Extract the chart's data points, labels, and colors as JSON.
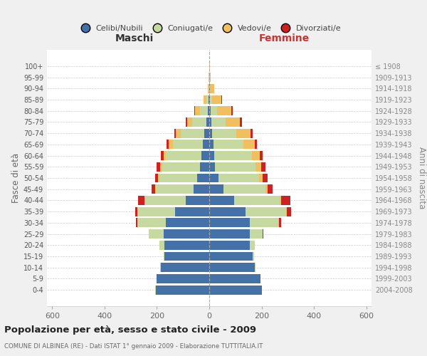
{
  "age_groups": [
    "0-4",
    "5-9",
    "10-14",
    "15-19",
    "20-24",
    "25-29",
    "30-34",
    "35-39",
    "40-44",
    "45-49",
    "50-54",
    "55-59",
    "60-64",
    "65-69",
    "70-74",
    "75-79",
    "80-84",
    "85-89",
    "90-94",
    "95-99",
    "100+"
  ],
  "birth_years": [
    "2004-2008",
    "1999-2003",
    "1994-1998",
    "1989-1993",
    "1984-1988",
    "1979-1983",
    "1974-1978",
    "1969-1973",
    "1964-1968",
    "1959-1963",
    "1954-1958",
    "1949-1953",
    "1944-1948",
    "1939-1943",
    "1934-1938",
    "1929-1933",
    "1924-1928",
    "1919-1923",
    "1914-1918",
    "1909-1913",
    "≤ 1908"
  ],
  "colors": {
    "celibi": "#4472a8",
    "coniugati": "#c5d9a0",
    "vedovi": "#f0c060",
    "divorziati": "#cc2222"
  },
  "maschi": {
    "celibi": [
      205,
      200,
      185,
      170,
      170,
      175,
      165,
      130,
      90,
      60,
      45,
      35,
      30,
      25,
      20,
      10,
      5,
      2,
      1,
      1,
      1
    ],
    "coniugati": [
      1,
      2,
      2,
      5,
      20,
      55,
      110,
      145,
      155,
      145,
      145,
      145,
      135,
      115,
      90,
      55,
      30,
      10,
      3,
      1,
      0
    ],
    "vedovi": [
      0,
      0,
      0,
      0,
      0,
      0,
      1,
      1,
      2,
      3,
      5,
      8,
      10,
      15,
      18,
      20,
      20,
      10,
      2,
      0,
      0
    ],
    "divorziati": [
      0,
      0,
      0,
      0,
      0,
      2,
      5,
      8,
      25,
      12,
      12,
      12,
      10,
      8,
      5,
      5,
      2,
      0,
      0,
      0,
      0
    ]
  },
  "femmine": {
    "celibi": [
      200,
      195,
      175,
      165,
      155,
      155,
      155,
      140,
      95,
      55,
      35,
      22,
      18,
      15,
      12,
      8,
      5,
      3,
      2,
      1,
      1
    ],
    "coniugati": [
      1,
      2,
      2,
      5,
      20,
      50,
      110,
      155,
      175,
      160,
      155,
      155,
      145,
      115,
      90,
      55,
      25,
      8,
      2,
      0,
      0
    ],
    "vedovi": [
      0,
      0,
      0,
      0,
      0,
      0,
      1,
      2,
      5,
      8,
      15,
      22,
      30,
      45,
      55,
      55,
      55,
      35,
      15,
      5,
      2
    ],
    "divorziati": [
      0,
      0,
      0,
      0,
      0,
      2,
      8,
      15,
      35,
      20,
      18,
      15,
      12,
      8,
      8,
      8,
      5,
      2,
      0,
      0,
      0
    ]
  },
  "xlim": 620,
  "xticks": [
    -600,
    -400,
    -200,
    0,
    200,
    400,
    600
  ],
  "xticklabels": [
    "600",
    "400",
    "200",
    "0",
    "200",
    "400",
    "600"
  ],
  "title": "Popolazione per età, sesso e stato civile - 2009",
  "subtitle": "COMUNE DI ALBINEA (RE) - Dati ISTAT 1° gennaio 2009 - Elaborazione TUTTITALIA.IT",
  "ylabel": "Fasce di età",
  "ylabel2": "Anni di nascita",
  "legend_labels": [
    "Celibi/Nubili",
    "Coniugati/e",
    "Vedovi/e",
    "Divorziati/e"
  ],
  "maschi_label": "Maschi",
  "femmine_label": "Femmine",
  "bg_color": "#f0f0f0",
  "plot_bg": "#ffffff"
}
